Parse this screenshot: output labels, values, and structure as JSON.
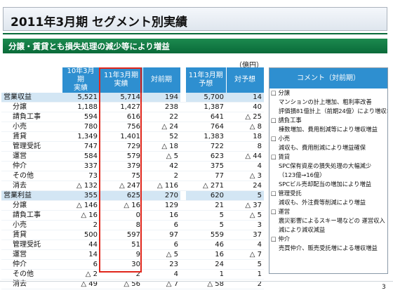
{
  "title": "2011年3月期 セグメント別実績",
  "subtitle": "分譲・賃貸とも損失処理の減少等により増益",
  "unit": "（億円）",
  "columns": [
    "10年3月期\n実績",
    "11年3月期\n実績",
    "対前期",
    "11年3月期\n予想",
    "対予想"
  ],
  "rows": [
    {
      "label": "営業収益",
      "cat": true,
      "v": [
        "5,521",
        "5,714",
        "194",
        "5,700",
        "14"
      ]
    },
    {
      "label": "分譲",
      "v": [
        "1,188",
        "1,427",
        "238",
        "1,387",
        "40"
      ]
    },
    {
      "label": "請負工事",
      "v": [
        "594",
        "616",
        "22",
        "641",
        "△ 25"
      ]
    },
    {
      "label": "小売",
      "v": [
        "780",
        "756",
        "△ 24",
        "764",
        "△ 8"
      ]
    },
    {
      "label": "賃貸",
      "v": [
        "1,349",
        "1,401",
        "52",
        "1,383",
        "18"
      ]
    },
    {
      "label": "管理受託",
      "v": [
        "747",
        "729",
        "△ 18",
        "722",
        "8"
      ]
    },
    {
      "label": "運営",
      "v": [
        "584",
        "579",
        "△ 5",
        "623",
        "△ 44"
      ]
    },
    {
      "label": "仲介",
      "v": [
        "337",
        "379",
        "42",
        "375",
        "4"
      ]
    },
    {
      "label": "その他",
      "v": [
        "73",
        "75",
        "2",
        "77",
        "△ 3"
      ]
    },
    {
      "label": "消去",
      "v": [
        "△ 132",
        "△ 247",
        "△ 116",
        "△ 271",
        "24"
      ]
    },
    {
      "label": "営業利益",
      "cat": true,
      "v": [
        "355",
        "625",
        "270",
        "620",
        "5"
      ]
    },
    {
      "label": "分譲",
      "v": [
        "△ 146",
        "△ 16",
        "129",
        "21",
        "△ 37"
      ]
    },
    {
      "label": "請負工事",
      "v": [
        "△ 16",
        "0",
        "16",
        "5",
        "△ 5"
      ]
    },
    {
      "label": "小売",
      "v": [
        "2",
        "8",
        "6",
        "5",
        "3"
      ]
    },
    {
      "label": "賃貸",
      "v": [
        "500",
        "597",
        "97",
        "559",
        "37"
      ]
    },
    {
      "label": "管理受託",
      "v": [
        "44",
        "51",
        "6",
        "46",
        "4"
      ]
    },
    {
      "label": "運営",
      "v": [
        "14",
        "9",
        "△ 5",
        "16",
        "△ 7"
      ]
    },
    {
      "label": "仲介",
      "v": [
        "6",
        "30",
        "23",
        "24",
        "5"
      ]
    },
    {
      "label": "その他",
      "v": [
        "△ 2",
        "2",
        "4",
        "1",
        "1"
      ]
    },
    {
      "label": "消去",
      "v": [
        "△ 49",
        "△ 56",
        "△ 7",
        "△ 58",
        "2"
      ]
    }
  ],
  "comment_header": "コメント（対前期）",
  "comments": [
    {
      "text": "□ 分譲",
      "sub": false
    },
    {
      "text": "マンションの計上増加、粗利率改善",
      "sub": true
    },
    {
      "text": "評価損81億計上（前期24億）により増収増益",
      "sub": true
    },
    {
      "text": "□ 請負工事",
      "sub": false
    },
    {
      "text": "棟数増加、費用削減等により増収増益",
      "sub": true
    },
    {
      "text": "□ 小売",
      "sub": false
    },
    {
      "text": "減収も、費用削減により増益確保",
      "sub": true
    },
    {
      "text": "□ 賃貸",
      "sub": false
    },
    {
      "text": "SPC保有資産の損失処理の大幅減少",
      "sub": true
    },
    {
      "text": "（123億→16億）",
      "sub": true
    },
    {
      "text": "SPCビル売却配当の増加により増益",
      "sub": true
    },
    {
      "text": "□ 管理受託",
      "sub": false
    },
    {
      "text": "減収も、外注費等削減により増益",
      "sub": true
    },
    {
      "text": "□ 運営",
      "sub": false
    },
    {
      "text": "震災影響によるスキー場などの 運営収入",
      "sub": true
    },
    {
      "text": "減により減収減益",
      "sub": true
    },
    {
      "text": "□ 仲介",
      "sub": false
    },
    {
      "text": "売買仲介、販売受託増による増収増益",
      "sub": true
    }
  ],
  "page_number": "3"
}
